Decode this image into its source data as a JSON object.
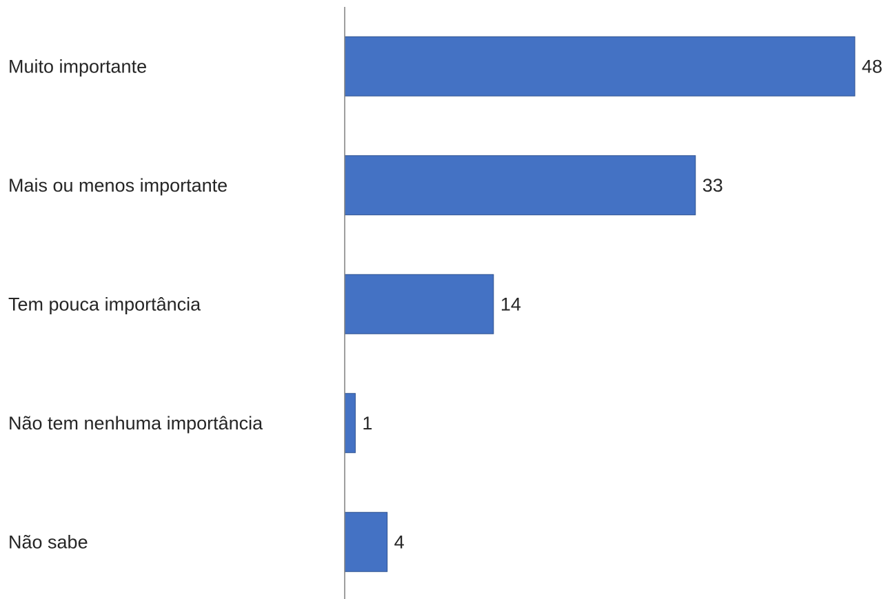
{
  "chart_data": {
    "type": "bar",
    "orientation": "horizontal",
    "categories": [
      "Muito importante",
      "Mais ou menos importante",
      "Tem pouca importância",
      "Não tem nenhuma importância",
      "Não sabe"
    ],
    "values": [
      48,
      33,
      14,
      1,
      4
    ],
    "title": "",
    "xlabel": "",
    "ylabel": "",
    "xlim": [
      0,
      48
    ],
    "grid": false,
    "legend": "none",
    "data_labels": true,
    "bar_color": "#4472c4"
  }
}
